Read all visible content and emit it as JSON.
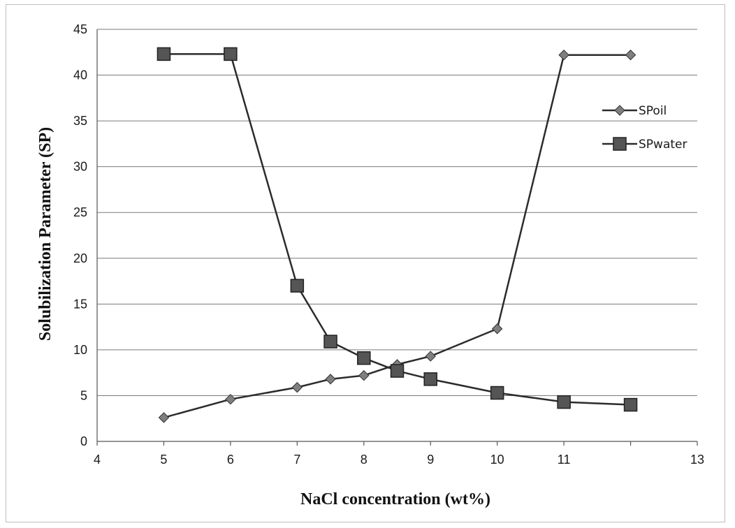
{
  "chart_data": {
    "type": "line",
    "xlabel": "NaCl concentration (wt%)",
    "ylabel": "Solubilization Parameter (SP)",
    "xlim": [
      4,
      13
    ],
    "ylim": [
      0,
      45
    ],
    "x_ticks": [
      "4",
      "5",
      "6",
      "7",
      "8",
      "9",
      "10",
      "11",
      "13"
    ],
    "x_tick_values": [
      4,
      5,
      6,
      7,
      8,
      9,
      10,
      11,
      13
    ],
    "y_ticks": [
      "0",
      "5",
      "10",
      "15",
      "20",
      "25",
      "30",
      "35",
      "40",
      "45"
    ],
    "y_tick_values": [
      0,
      5,
      10,
      15,
      20,
      25,
      30,
      35,
      40,
      45
    ],
    "grid": "horizontal",
    "legend_position": "right",
    "series": [
      {
        "name": "SPoil",
        "marker": "diamond",
        "color": "#7f7f7f",
        "x": [
          5,
          6,
          7,
          7.5,
          8,
          8.5,
          9,
          10,
          11,
          12
        ],
        "y": [
          2.6,
          4.6,
          5.9,
          6.8,
          7.2,
          8.4,
          9.3,
          12.3,
          42.2,
          42.2
        ]
      },
      {
        "name": "SPwater",
        "marker": "square",
        "color": "#555555",
        "x": [
          5,
          6,
          7,
          7.5,
          8,
          8.5,
          9,
          10,
          11,
          12
        ],
        "y": [
          42.3,
          42.3,
          17.0,
          10.9,
          9.1,
          7.7,
          6.8,
          5.3,
          4.3,
          4.0
        ]
      }
    ]
  }
}
